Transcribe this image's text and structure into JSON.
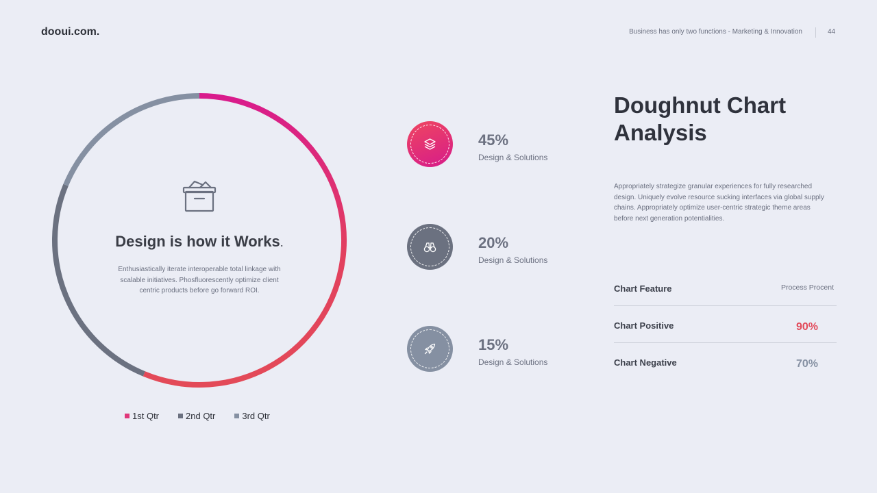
{
  "header": {
    "brand": "dooui.com.",
    "tagline": "Business has only two functions - Marketing & Innovation",
    "page_number": "44"
  },
  "center": {
    "icon": "archive-box-icon",
    "title": "Design is how it Works",
    "title_dot": ".",
    "description": "Enthusiastically iterate interoperable total linkage  with scalable initiatives. Phosfluorescently optimize client centric products before go forward ROI."
  },
  "chart_data": {
    "type": "pie",
    "style": "doughnut",
    "categories": [
      "1st Qtr",
      "2nd Qtr",
      "3rd Qtr"
    ],
    "values": [
      45,
      20,
      15
    ],
    "colors": [
      "#e0387a",
      "#6b7180",
      "#8590a2"
    ],
    "legend_position": "bottom"
  },
  "stats": [
    {
      "value": "45%",
      "label": "Design & Solutions",
      "icon": "layers-icon",
      "color_from": "#ef4660",
      "color_to": "#d61b8a"
    },
    {
      "value": "20%",
      "label": "Design & Solutions",
      "icon": "binoculars-icon",
      "color_from": "#6b7180",
      "color_to": "#6b7180"
    },
    {
      "value": "15%",
      "label": "Design & Solutions",
      "icon": "rocket-icon",
      "color_from": "#8590a2",
      "color_to": "#8590a2"
    }
  ],
  "panel": {
    "title_line1": "Doughnut Chart",
    "title_line2": "Analysis",
    "description": "Appropriately strategize granular experiences for fully researched design. Uniquely evolve resource sucking interfaces via global supply chains. Appropriately optimize user-centric strategic theme areas before next generation potentialities.",
    "table": {
      "header_left": "Chart Feature",
      "header_right": "Process Procent",
      "rows": [
        {
          "label": "Chart Positive",
          "value": "90%",
          "color": "#e24a5a"
        },
        {
          "label": "Chart Negative",
          "value": "70%",
          "color": "#8590a2"
        }
      ]
    }
  }
}
